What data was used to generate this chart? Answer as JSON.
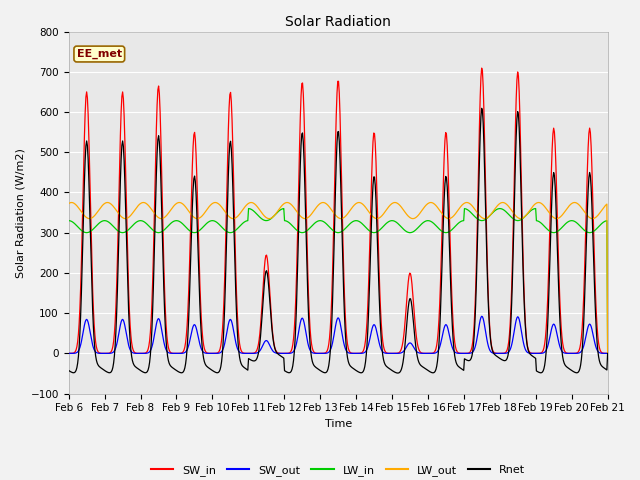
{
  "title": "Solar Radiation",
  "xlabel": "Time",
  "ylabel": "Solar Radiation (W/m2)",
  "ylim": [
    -100,
    800
  ],
  "yticks": [
    -100,
    0,
    100,
    200,
    300,
    400,
    500,
    600,
    700,
    800
  ],
  "x_labels": [
    "Feb 6",
    "Feb 7",
    "Feb 8",
    "Feb 9",
    "Feb 10",
    "Feb 11",
    "Feb 12",
    "Feb 13",
    "Feb 14",
    "Feb 15",
    "Feb 16",
    "Feb 17",
    "Feb 18",
    "Feb 19",
    "Feb 20",
    "Feb 21"
  ],
  "annotation_text": "EE_met",
  "annotation_bg": "#ffffcc",
  "annotation_border": "#996600",
  "colors": {
    "SW_in": "#ff0000",
    "SW_out": "#0000ff",
    "LW_in": "#00cc00",
    "LW_out": "#ffaa00",
    "Rnet": "#000000"
  },
  "fig_bg": "#f2f2f2",
  "plot_bg": "#e8e8e8",
  "n_days": 15,
  "sw_peaks": [
    650,
    650,
    665,
    550,
    650,
    245,
    675,
    680,
    550,
    200,
    550,
    710,
    700,
    560,
    560
  ]
}
